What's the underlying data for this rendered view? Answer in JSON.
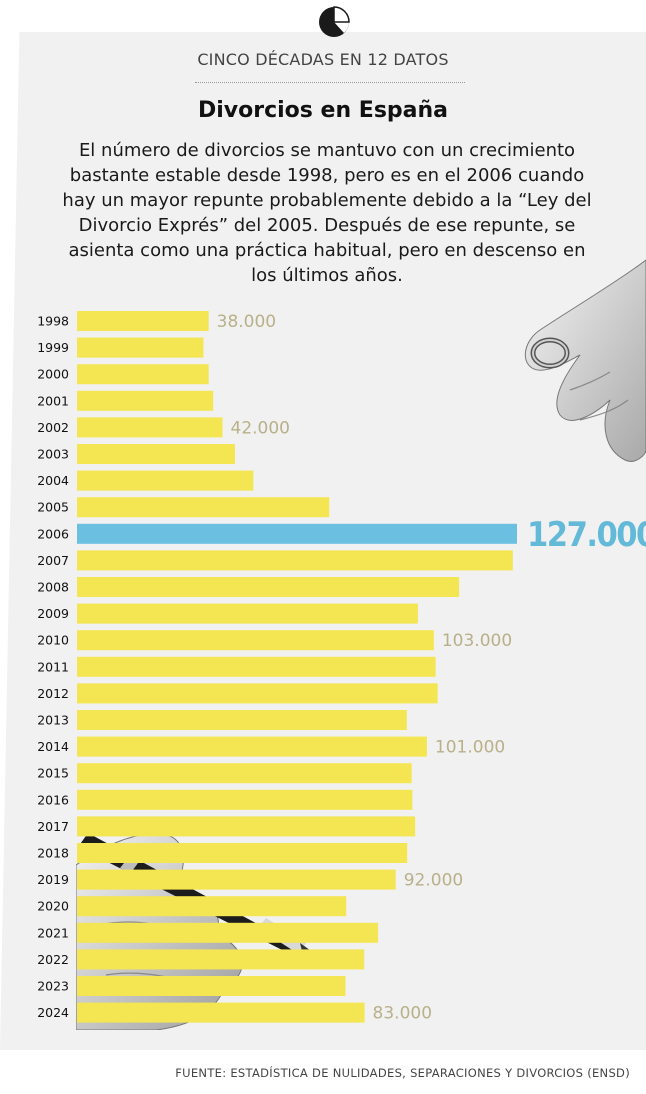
{
  "header": {
    "kicker": "CINCO DÉCADAS EN 12 DATOS",
    "title": "Divorcios en España",
    "intro": "El número de divorcios se mantuvo con un crecimiento bastante estable desde 1998, pero es en el 2006 cuando hay un mayor repunte probablemente debido a la “Ley del Divorcio Exprés” del 2005. Después de ese repunte, se asienta como una práctica habitual, pero en descenso en los últimos años."
  },
  "source": "FUENTE: ESTADÍSTICA DE NULIDADES, SEPARACIONES Y DIVORCIOS (ENSD)",
  "colors": {
    "bar": "#f4e552",
    "highlight": "#6bbfe0",
    "label": "#b9b08a",
    "background": "#f1f1f1"
  },
  "icons": {
    "logo": "pie-chart-icon",
    "top_photo": "hand-with-ring-photo",
    "bottom_photo": "hand-with-pen-photo"
  },
  "chart_data": {
    "type": "bar",
    "orientation": "horizontal",
    "categories": [
      "1998",
      "1999",
      "2000",
      "2001",
      "2002",
      "2003",
      "2004",
      "2005",
      "2006",
      "2007",
      "2008",
      "2009",
      "2010",
      "2011",
      "2012",
      "2013",
      "2014",
      "2015",
      "2016",
      "2017",
      "2018",
      "2019",
      "2020",
      "2021",
      "2022",
      "2023",
      "2024"
    ],
    "values": [
      38000,
      36500,
      38000,
      39300,
      42000,
      45600,
      50900,
      72800,
      127000,
      125800,
      110300,
      98400,
      103000,
      103500,
      104100,
      95200,
      101000,
      96600,
      96800,
      97600,
      95300,
      92000,
      77700,
      86900,
      82900,
      77500,
      83000
    ],
    "labels": {
      "1998": "38.000",
      "2002": "42.000",
      "2006": "127.000",
      "2010": "103.000",
      "2014": "101.000",
      "2019": "92.000",
      "2024": "83.000"
    },
    "highlight": "2006",
    "xlim": [
      0,
      127000
    ],
    "grid": false,
    "legend": "none"
  }
}
